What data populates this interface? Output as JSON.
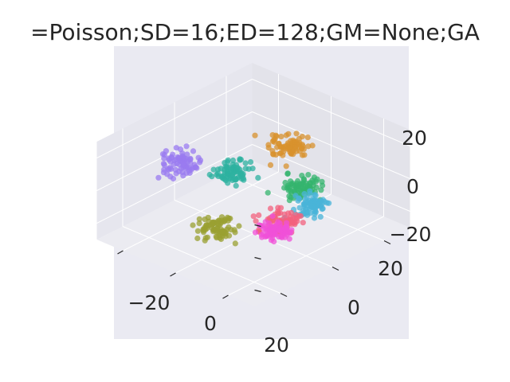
{
  "chart_data": {
    "type": "scatter",
    "projection": "3d",
    "title": "=Poisson;SD=16;ED=128;GM=None;GA",
    "xlabel": "",
    "ylabel": "",
    "zlabel": "",
    "x_ticks": [
      "−20",
      "0",
      "20"
    ],
    "y_ticks": [
      "0",
      "20"
    ],
    "z_ticks": [
      "20",
      "0",
      "−20"
    ],
    "xlim": [
      -30,
      30
    ],
    "ylim": [
      -30,
      30
    ],
    "zlim": [
      -30,
      30
    ],
    "grid": true,
    "legend": "none",
    "style": "seaborn-darkgrid",
    "series": [
      {
        "color": "#9a7bf0",
        "center": [
          -28,
          0,
          -6
        ],
        "spread": 2.8
      },
      {
        "color": "#2eb2a0",
        "center": [
          -8,
          0,
          2
        ],
        "spread": 2.6
      },
      {
        "color": "#d8922e",
        "center": [
          4,
          10,
          18
        ],
        "spread": 2.7
      },
      {
        "color": "#34b46e",
        "center": [
          12,
          6,
          2
        ],
        "spread": 2.6
      },
      {
        "color": "#4ab4d8",
        "center": [
          16,
          6,
          -6
        ],
        "spread": 2.2
      },
      {
        "color": "#f3627e",
        "center": [
          11,
          0,
          -15
        ],
        "spread": 3.0
      },
      {
        "color": "#f050d8",
        "center": [
          11,
          -3,
          -19
        ],
        "spread": 2.2
      },
      {
        "color": "#9aa032",
        "center": [
          0,
          -14,
          -15
        ],
        "spread": 2.7
      }
    ]
  }
}
